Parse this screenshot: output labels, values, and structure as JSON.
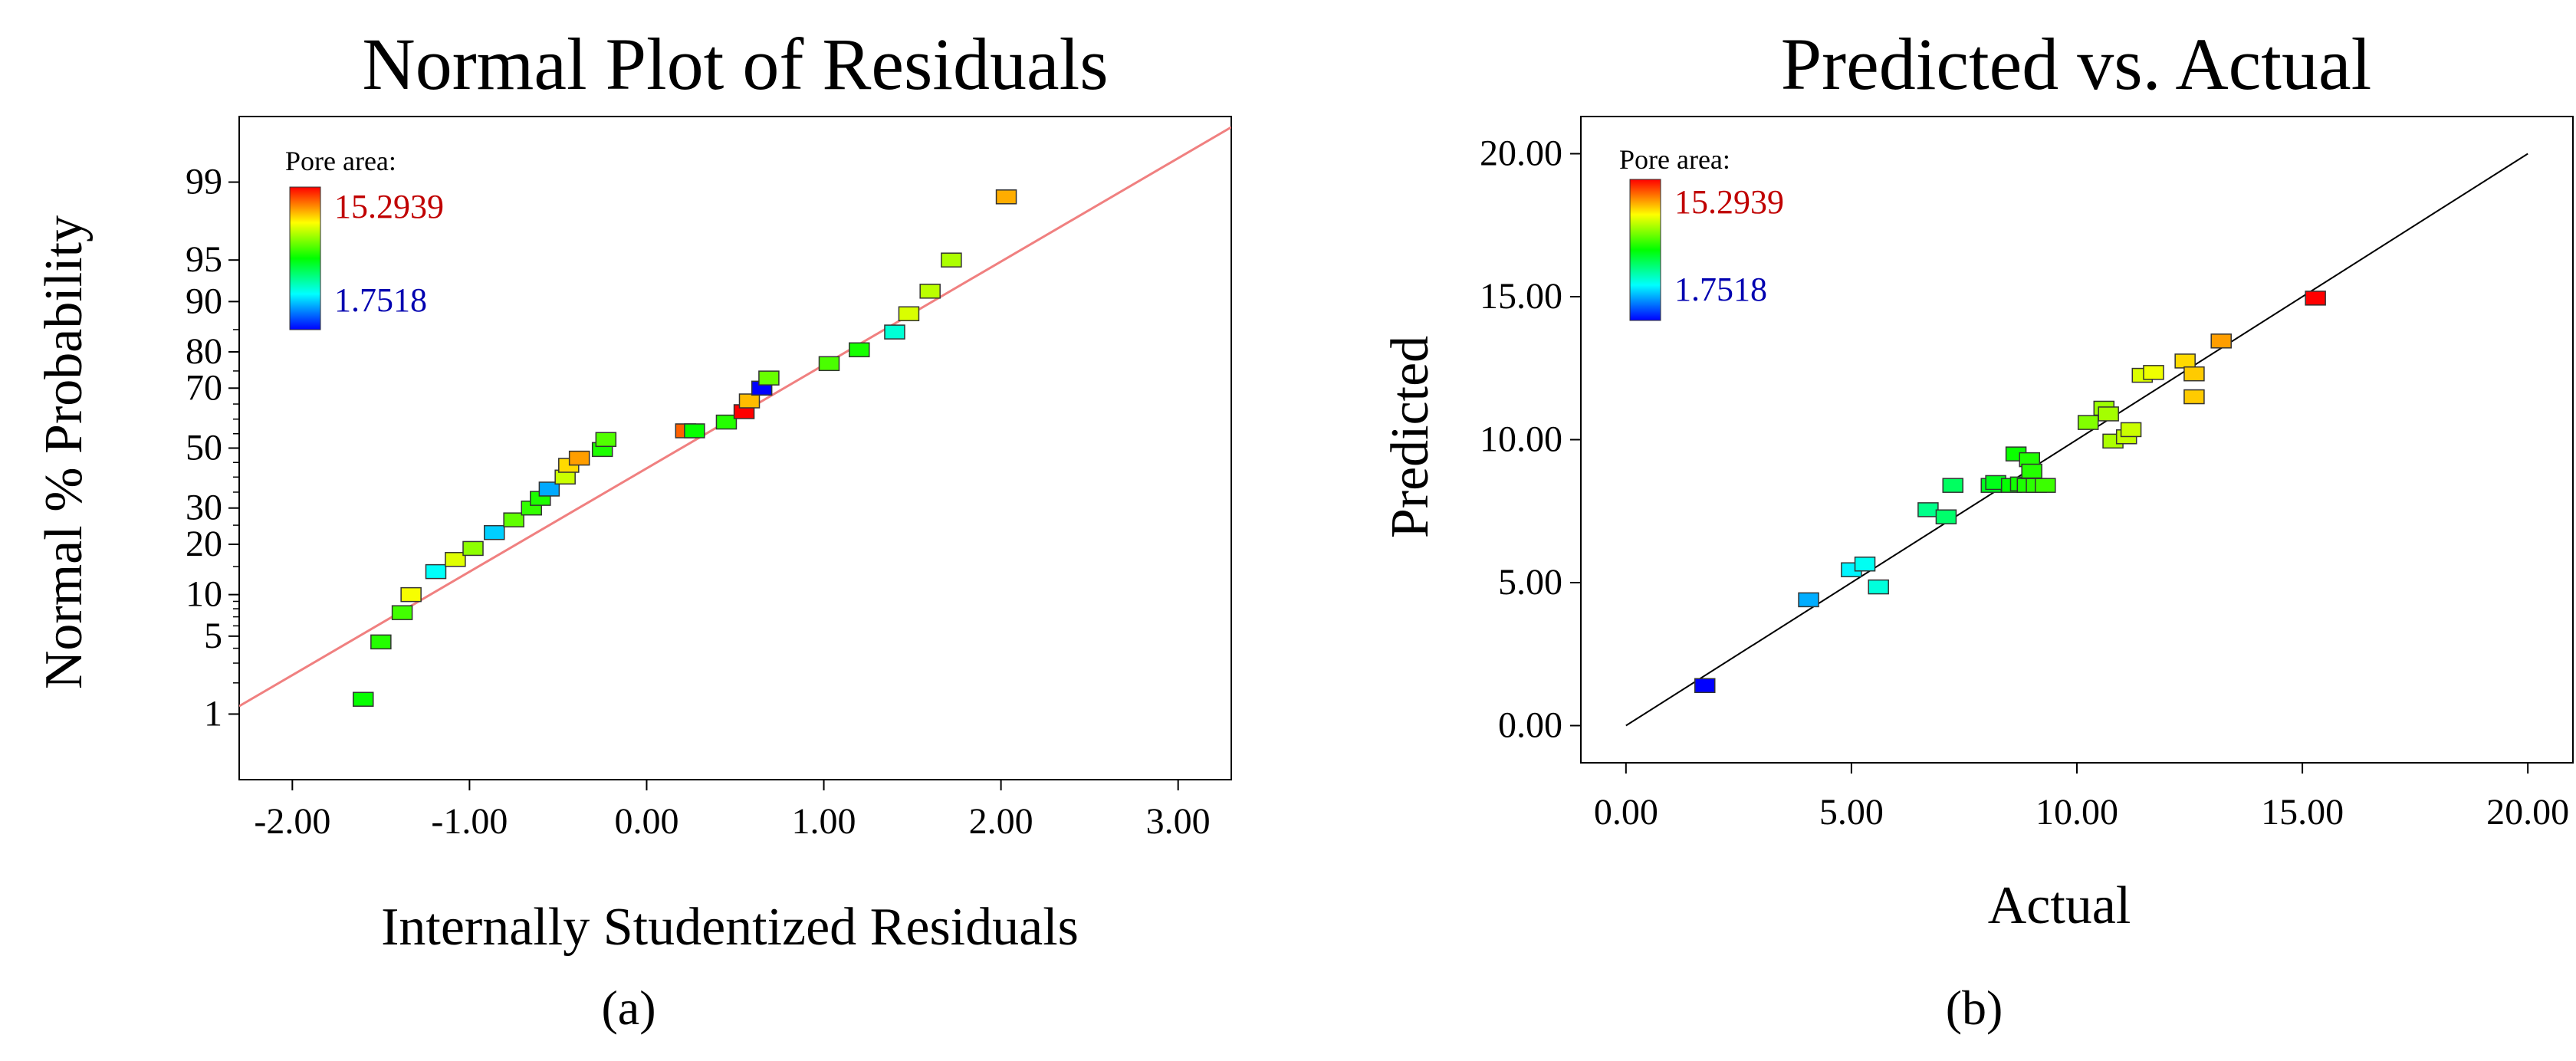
{
  "chart_data": [
    {
      "type": "scatter",
      "title": "Normal Plot of Residuals",
      "xlabel": "Internally Studentized Residuals",
      "ylabel": "Normal % Probability",
      "caption": "(a)",
      "xlim": [
        -2.3,
        3.3
      ],
      "x_ticks": [
        -2,
        -1,
        0,
        1,
        2,
        3
      ],
      "x_tick_labels": [
        "-2.00",
        "-1.00",
        "0.00",
        "1.00",
        "2.00",
        "3.00"
      ],
      "y_scale": "normal-probability",
      "y_ticks": [
        1,
        5,
        10,
        20,
        30,
        50,
        70,
        80,
        90,
        95,
        99
      ],
      "y_tick_labels": [
        "1",
        "5",
        "10",
        "20",
        "30",
        "50",
        "70",
        "80",
        "90",
        "95",
        "99"
      ],
      "legend": {
        "title": "Pore area:",
        "high_label": "15.2939",
        "low_label": "1.7518",
        "position": "top-left"
      },
      "reference_line": {
        "color": "#f08080",
        "from": [
          -2.3,
          1.2
        ],
        "to": [
          3.3,
          99.75
        ]
      },
      "points": [
        {
          "x": -1.6,
          "y": 1.4,
          "pore_area": 8.6
        },
        {
          "x": -1.5,
          "y": 4.5,
          "pore_area": 9.0
        },
        {
          "x": -1.38,
          "y": 7.5,
          "pore_area": 9.4
        },
        {
          "x": -1.33,
          "y": 10.0,
          "pore_area": 11.8
        },
        {
          "x": -1.19,
          "y": 14.0,
          "pore_area": 5.2
        },
        {
          "x": -1.08,
          "y": 16.5,
          "pore_area": 11.5
        },
        {
          "x": -0.98,
          "y": 19.0,
          "pore_area": 10.4
        },
        {
          "x": -0.86,
          "y": 23.0,
          "pore_area": 4.5
        },
        {
          "x": -0.75,
          "y": 26.5,
          "pore_area": 9.8
        },
        {
          "x": -0.65,
          "y": 30.0,
          "pore_area": 9.2
        },
        {
          "x": -0.6,
          "y": 33.0,
          "pore_area": 8.9
        },
        {
          "x": -0.55,
          "y": 36.0,
          "pore_area": 4.0
        },
        {
          "x": -0.46,
          "y": 40.0,
          "pore_area": 11.2
        },
        {
          "x": -0.44,
          "y": 44.0,
          "pore_area": 12.4
        },
        {
          "x": -0.38,
          "y": 46.5,
          "pore_area": 13.2
        },
        {
          "x": -0.25,
          "y": 49.5,
          "pore_area": 8.9
        },
        {
          "x": -0.23,
          "y": 53.0,
          "pore_area": 9.6
        },
        {
          "x": 0.22,
          "y": 56.0,
          "pore_area": 14.0
        },
        {
          "x": 0.27,
          "y": 56.0,
          "pore_area": 8.6
        },
        {
          "x": 0.45,
          "y": 59.0,
          "pore_area": 9.0
        },
        {
          "x": 0.55,
          "y": 62.5,
          "pore_area": 15.29
        },
        {
          "x": 0.58,
          "y": 66.0,
          "pore_area": 12.8
        },
        {
          "x": 0.65,
          "y": 70.0,
          "pore_area": 1.75
        },
        {
          "x": 0.69,
          "y": 73.0,
          "pore_area": 9.9
        },
        {
          "x": 1.03,
          "y": 77.0,
          "pore_area": 9.5
        },
        {
          "x": 1.2,
          "y": 80.5,
          "pore_area": 8.8
        },
        {
          "x": 1.4,
          "y": 84.5,
          "pore_area": 5.7
        },
        {
          "x": 1.48,
          "y": 88.0,
          "pore_area": 11.4
        },
        {
          "x": 1.6,
          "y": 91.5,
          "pore_area": 11.0
        },
        {
          "x": 1.72,
          "y": 95.0,
          "pore_area": 10.8
        },
        {
          "x": 2.03,
          "y": 98.6,
          "pore_area": 13.0
        }
      ]
    },
    {
      "type": "scatter",
      "title": "Predicted vs. Actual",
      "xlabel": "Actual",
      "ylabel": "Predicted",
      "caption": "(b)",
      "xlim": [
        -1.0,
        21.0
      ],
      "ylim": [
        -1.3,
        21.3
      ],
      "x_ticks": [
        0,
        5,
        10,
        15,
        20
      ],
      "x_tick_labels": [
        "0.00",
        "5.00",
        "10.00",
        "15.00",
        "20.00"
      ],
      "y_ticks": [
        0,
        5,
        10,
        15,
        20
      ],
      "y_tick_labels": [
        "0.00",
        "5.00",
        "10.00",
        "15.00",
        "20.00"
      ],
      "legend": {
        "title": "Pore area:",
        "high_label": "15.2939",
        "low_label": "1.7518",
        "position": "top-left"
      },
      "reference_line": {
        "color": "#000000",
        "from": [
          0,
          0
        ],
        "to": [
          20,
          20
        ]
      },
      "points": [
        {
          "x": 1.75,
          "y": 1.4,
          "pore_area": 1.75
        },
        {
          "x": 4.05,
          "y": 4.4,
          "pore_area": 4.05
        },
        {
          "x": 5.0,
          "y": 5.45,
          "pore_area": 5.0
        },
        {
          "x": 5.3,
          "y": 5.65,
          "pore_area": 5.3
        },
        {
          "x": 5.6,
          "y": 4.85,
          "pore_area": 5.6
        },
        {
          "x": 6.7,
          "y": 7.55,
          "pore_area": 6.7
        },
        {
          "x": 7.1,
          "y": 7.3,
          "pore_area": 7.1
        },
        {
          "x": 7.25,
          "y": 8.4,
          "pore_area": 7.25
        },
        {
          "x": 8.1,
          "y": 8.4,
          "pore_area": 8.1
        },
        {
          "x": 8.2,
          "y": 8.5,
          "pore_area": 8.2
        },
        {
          "x": 8.55,
          "y": 8.4,
          "pore_area": 8.55
        },
        {
          "x": 8.65,
          "y": 9.5,
          "pore_area": 8.65
        },
        {
          "x": 8.75,
          "y": 8.45,
          "pore_area": 8.75
        },
        {
          "x": 8.9,
          "y": 8.4,
          "pore_area": 8.9
        },
        {
          "x": 8.95,
          "y": 9.3,
          "pore_area": 8.95
        },
        {
          "x": 9.0,
          "y": 8.9,
          "pore_area": 9.0
        },
        {
          "x": 9.1,
          "y": 8.4,
          "pore_area": 9.1
        },
        {
          "x": 9.3,
          "y": 8.4,
          "pore_area": 9.3
        },
        {
          "x": 10.25,
          "y": 10.6,
          "pore_area": 10.25
        },
        {
          "x": 10.6,
          "y": 11.1,
          "pore_area": 10.6
        },
        {
          "x": 10.7,
          "y": 10.9,
          "pore_area": 10.7
        },
        {
          "x": 10.8,
          "y": 9.95,
          "pore_area": 10.8
        },
        {
          "x": 11.1,
          "y": 10.1,
          "pore_area": 11.1
        },
        {
          "x": 11.2,
          "y": 10.35,
          "pore_area": 11.2
        },
        {
          "x": 11.45,
          "y": 12.25,
          "pore_area": 11.45
        },
        {
          "x": 11.7,
          "y": 12.35,
          "pore_area": 11.7
        },
        {
          "x": 12.4,
          "y": 12.75,
          "pore_area": 12.4
        },
        {
          "x": 12.6,
          "y": 12.3,
          "pore_area": 12.6
        },
        {
          "x": 12.6,
          "y": 11.5,
          "pore_area": 12.6
        },
        {
          "x": 13.2,
          "y": 13.45,
          "pore_area": 13.2
        },
        {
          "x": 15.29,
          "y": 14.95,
          "pore_area": 15.29
        }
      ]
    }
  ]
}
